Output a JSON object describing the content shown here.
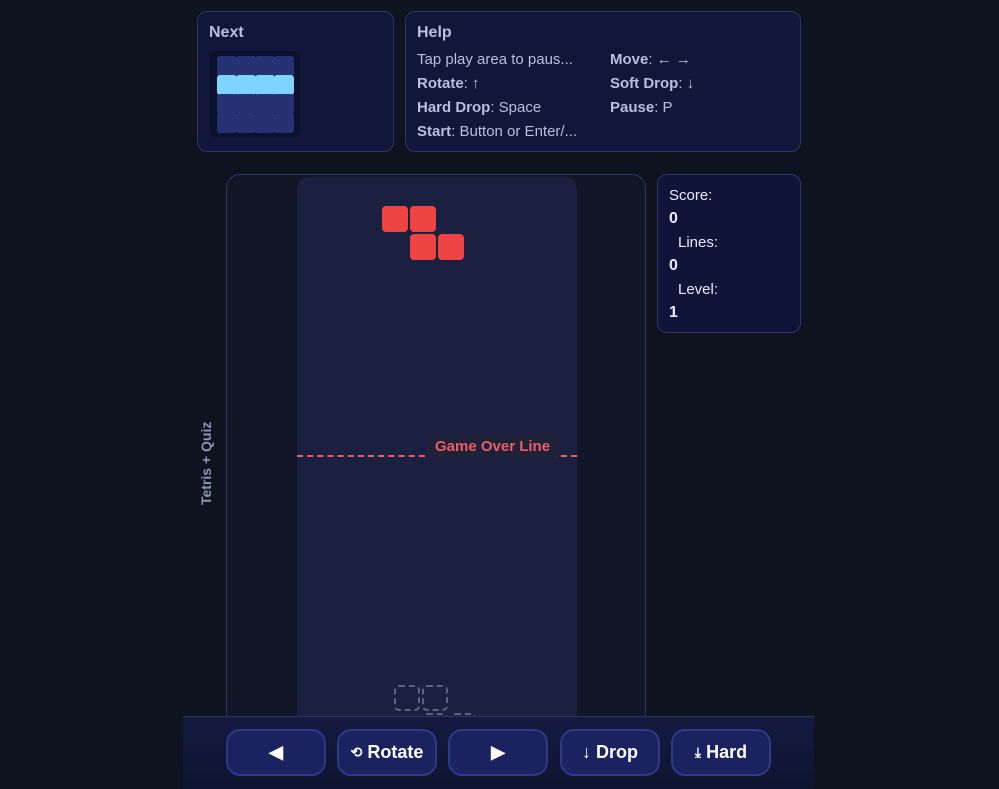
{
  "next": {
    "title": "Next",
    "piece": "I",
    "grid": [
      [
        0,
        0,
        0,
        0
      ],
      [
        1,
        1,
        1,
        1
      ],
      [
        0,
        0,
        0,
        0
      ],
      [
        0,
        0,
        0,
        0
      ]
    ],
    "color": "#7fd3ff"
  },
  "help": {
    "title": "Help",
    "lines": [
      {
        "key": "",
        "val": "Tap play area to paus..."
      },
      {
        "key": "Move",
        "val": ": ← →"
      },
      {
        "key": "Rotate",
        "val": ": ↑"
      },
      {
        "key": "Soft Drop",
        "val": ": ↓"
      },
      {
        "key": "Hard Drop",
        "val": ": Space"
      },
      {
        "key": "Pause",
        "val": ": P"
      },
      {
        "key": "Start",
        "val": ": Button or Enter/..."
      }
    ]
  },
  "stats": {
    "score_label": "Score:",
    "score": "0",
    "lines_label": "Lines:",
    "lines": "0",
    "level_label": "Level:",
    "level": "1"
  },
  "game": {
    "side_label": "Tetris + Quiz",
    "game_over_label": "Game Over Line",
    "piece": "Z",
    "piece_color": "#ef4444",
    "active_cells": [
      [
        1,
        3
      ],
      [
        1,
        4
      ],
      [
        2,
        4
      ],
      [
        2,
        5
      ]
    ],
    "ghost_cells": [
      [
        18,
        3
      ],
      [
        18,
        4
      ],
      [
        19,
        4
      ],
      [
        19,
        5
      ]
    ]
  },
  "controls": {
    "left": {
      "icon": "triangle-left-icon",
      "glyph": "◀"
    },
    "rotate": {
      "icon": "rotate-icon",
      "glyph": "⟲",
      "label": "Rotate"
    },
    "right": {
      "icon": "triangle-right-icon",
      "glyph": "▶"
    },
    "drop": {
      "icon": "arrow-down-icon",
      "glyph": "↓",
      "label": "Drop"
    },
    "hard": {
      "icon": "hard-drop-icon",
      "glyph": "⤓",
      "label": "Hard"
    }
  }
}
